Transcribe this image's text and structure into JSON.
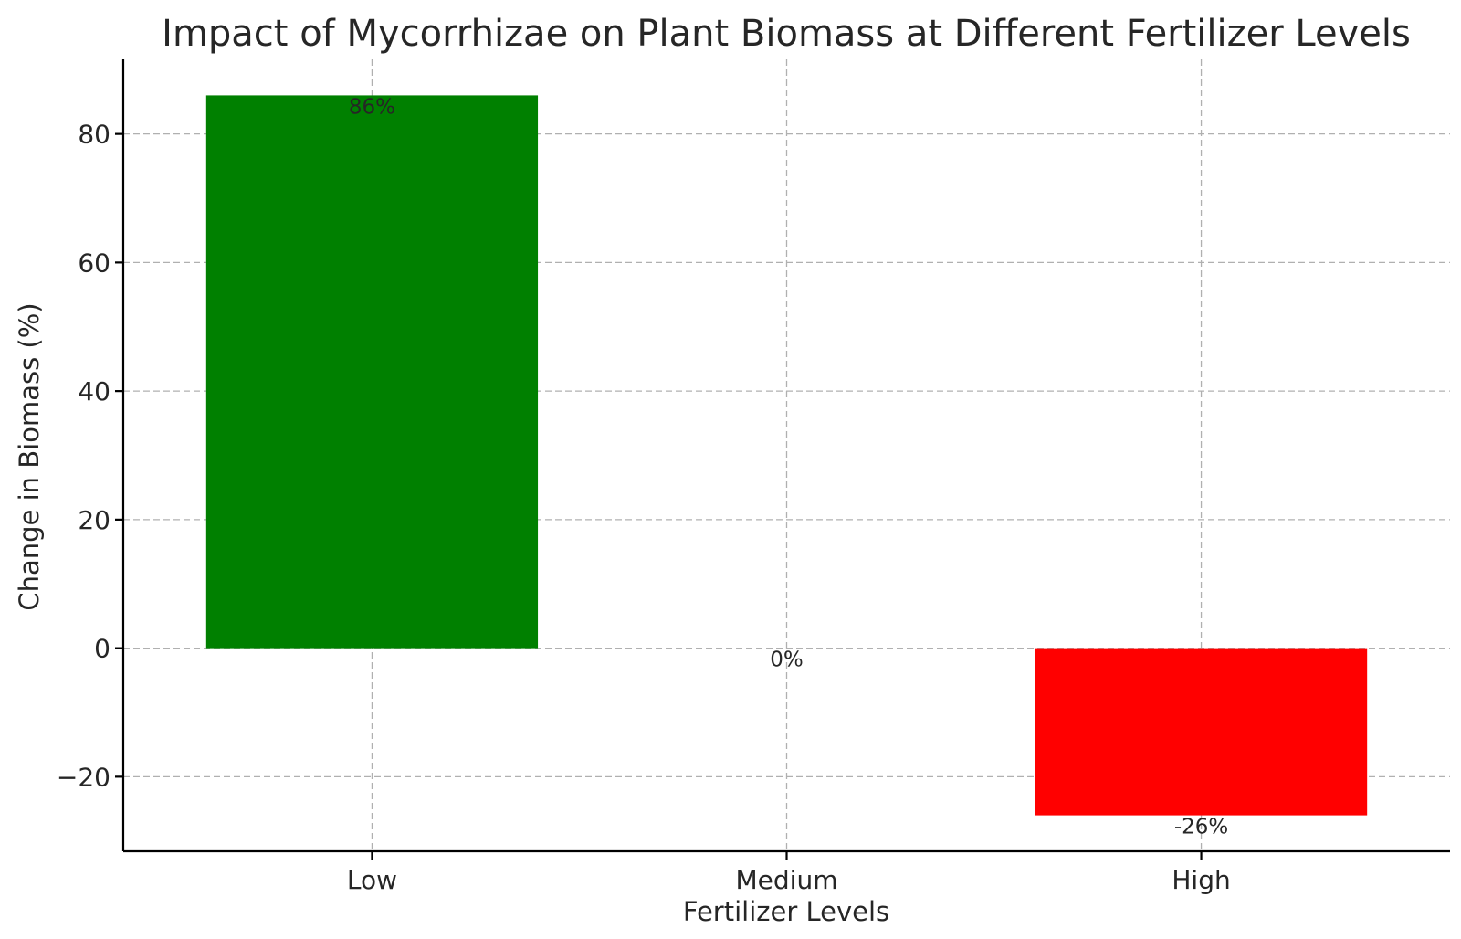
{
  "chart_data": {
    "type": "bar",
    "title": "Impact of Mycorrhizae on Plant Biomass at Different Fertilizer Levels",
    "xlabel": "Fertilizer Levels",
    "ylabel": "Change in Biomass (%)",
    "categories": [
      "Low",
      "Medium",
      "High"
    ],
    "values": [
      86,
      0,
      -26
    ],
    "data_labels": [
      "86%",
      "0%",
      "-26%"
    ],
    "colors": [
      "#008000",
      "#008000",
      "#ff0000"
    ],
    "ylim": [
      -31.6,
      91.6
    ],
    "yticks": [
      -20,
      0,
      20,
      40,
      60,
      80
    ],
    "ytick_labels": [
      "−20",
      "0",
      "20",
      "40",
      "60",
      "80"
    ],
    "grid": true,
    "legend": "none"
  }
}
